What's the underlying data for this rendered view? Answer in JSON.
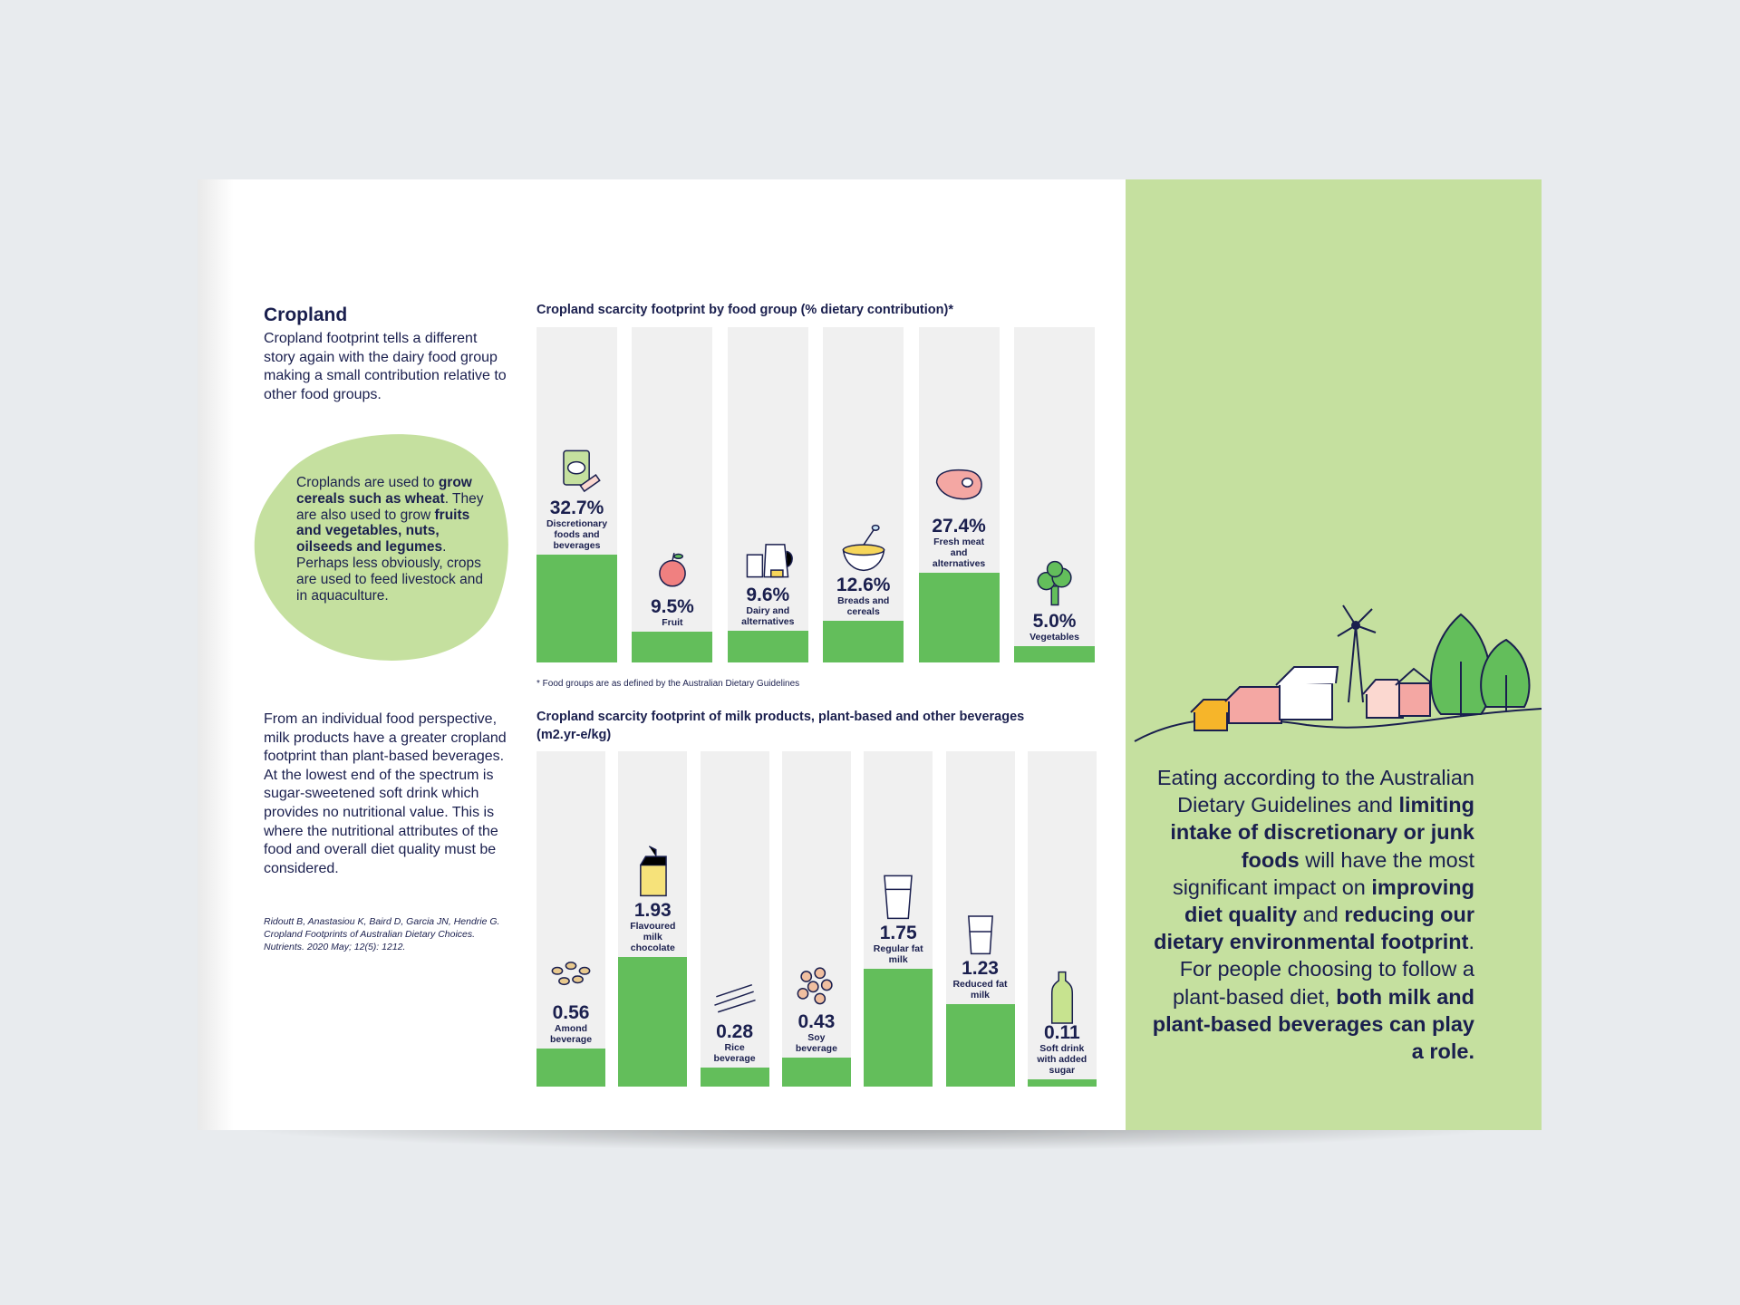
{
  "sidebar": {
    "heading": "Cropland",
    "intro": "Cropland footprint tells a different story again with the dairy food group making a small contribution relative to other food groups.",
    "callout": [
      "Croplands are used to ",
      "grow cereals such as wheat",
      ". They are also used to grow ",
      "fruits and vegetables, nuts, oilseeds and legumes",
      ". Perhaps less obviously, crops are used to feed livestock and in aquaculture."
    ],
    "body": "From an individual food perspective, milk products have a greater cropland footprint than plant-based beverages. At the lowest end of the spectrum is sugar-sweetened soft drink which provides no nutritional value. This is where the nutritional attributes of the food and overall diet quality must be considered.",
    "citation": "Ridoutt B, Anastasiou K, Baird D, Garcia JN, Hendrie G. Cropland Footprints of Australian Dietary Choices. Nutrients. 2020 May; 12(5): 1212."
  },
  "chart_data": [
    {
      "type": "bar",
      "title": "Cropland scarcity footprint by food group (% dietary contribution)*",
      "categories": [
        "Discretionary foods and beverages",
        "Fruit",
        "Dairy and alternatives",
        "Breads and cereals",
        "Fresh meat and alternatives",
        "Vegetables"
      ],
      "values": [
        32.7,
        9.5,
        9.6,
        12.6,
        27.4,
        5.0
      ],
      "value_labels": [
        "32.7%",
        "9.5%",
        "9.6%",
        "12.6%",
        "27.4%",
        "5.0%"
      ],
      "color": "#63be5b",
      "footnote": "* Food groups are as defined by the Australian Dietary Guidelines"
    },
    {
      "type": "bar",
      "title": "Cropland scarcity footprint of milk products, plant-based and other beverages",
      "unit_label": "(m2.yr-e/kg)",
      "categories": [
        "Amond beverage",
        "Flavoured milk chocolate",
        "Rice beverage",
        "Soy beverage",
        "Regular fat milk",
        "Reduced fat milk",
        "Soft drink with added sugar"
      ],
      "values": [
        0.56,
        1.93,
        0.28,
        0.43,
        1.75,
        1.23,
        0.11
      ],
      "color": "#63be5b"
    }
  ],
  "panel": {
    "parts": [
      "Eating according to the Australian Dietary Guidelines and ",
      "limiting intake of discretionary or junk foods",
      " will have the most significant impact on ",
      "improving diet quality",
      " and ",
      "reducing our dietary environmental footprint",
      ". For people choosing to follow a plant-based diet, ",
      "both milk and plant-based beverages can play a role."
    ]
  }
}
